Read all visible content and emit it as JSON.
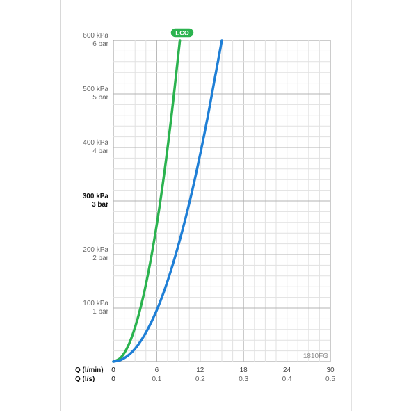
{
  "chart_data": {
    "type": "line",
    "title": "",
    "model_label": "1810FG",
    "y_axis": {
      "ticks": [
        {
          "kpa": "600 kPa",
          "bar": "6 bar",
          "value": 600,
          "emphasis": false
        },
        {
          "kpa": "500 kPa",
          "bar": "5 bar",
          "value": 500,
          "emphasis": false
        },
        {
          "kpa": "400 kPa",
          "bar": "4 bar",
          "value": 400,
          "emphasis": false
        },
        {
          "kpa": "300 kPa",
          "bar": "3 bar",
          "value": 300,
          "emphasis": true
        },
        {
          "kpa": "200 kPa",
          "bar": "2 bar",
          "value": 200,
          "emphasis": false
        },
        {
          "kpa": "100 kPa",
          "bar": "1 bar",
          "value": 100,
          "emphasis": false
        }
      ],
      "ylim": [
        0,
        600
      ],
      "unit": "kPa"
    },
    "x_axis": {
      "primary_label": "Q (l/min)",
      "secondary_label": "Q (l/s)",
      "ticks_lmin": [
        "0",
        "6",
        "12",
        "18",
        "24",
        "30"
      ],
      "ticks_ls": [
        "0",
        "0.1",
        "0.2",
        "0.3",
        "0.4",
        "0.5"
      ],
      "xlim": [
        0,
        30
      ],
      "unit": "l/min"
    },
    "grid": true,
    "series": [
      {
        "name": "ECO",
        "color": "#2bb34f",
        "points": [
          [
            0,
            0
          ],
          [
            1,
            7
          ],
          [
            2,
            28
          ],
          [
            3,
            64
          ],
          [
            4,
            114
          ],
          [
            5,
            178
          ],
          [
            6,
            256
          ],
          [
            7,
            348
          ],
          [
            8,
            455
          ],
          [
            9,
            576
          ],
          [
            9.2,
            600
          ]
        ]
      },
      {
        "name": "",
        "color": "#1f7fd6",
        "points": [
          [
            0,
            0
          ],
          [
            1,
            3
          ],
          [
            2,
            11
          ],
          [
            3,
            24
          ],
          [
            4,
            43
          ],
          [
            5,
            67
          ],
          [
            6,
            96
          ],
          [
            7,
            131
          ],
          [
            8,
            172
          ],
          [
            9,
            218
          ],
          [
            10,
            269
          ],
          [
            11,
            325
          ],
          [
            12,
            387
          ],
          [
            13,
            454
          ],
          [
            14,
            527
          ],
          [
            15,
            600
          ]
        ]
      }
    ]
  }
}
